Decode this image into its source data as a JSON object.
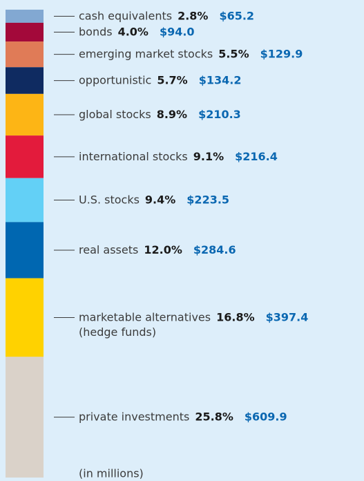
{
  "chart_data": {
    "type": "stacked-column",
    "categories": [
      "cash equivalents",
      "bonds",
      "emerging market stocks",
      "opportunistic",
      "global stocks",
      "international stocks",
      "U.S. stocks",
      "real assets",
      "marketable alternatives",
      "private investments"
    ],
    "category_notes": [
      null,
      null,
      null,
      null,
      null,
      null,
      null,
      null,
      "(hedge funds)",
      null
    ],
    "colors": [
      "#82a8d2",
      "#a3093a",
      "#e07b57",
      "#0f2b61",
      "#fdb515",
      "#e31b3c",
      "#63d0f6",
      "#0067b1",
      "#ffd200",
      "#dad2c9"
    ],
    "series": [
      {
        "name": "share",
        "values": [
          2.8,
          4.0,
          5.5,
          5.7,
          8.9,
          9.1,
          9.4,
          12.0,
          16.8,
          25.8
        ],
        "value_labels": [
          "2.8%",
          "4.0%",
          "5.5%",
          "5.7%",
          "8.9%",
          "9.1%",
          "9.4%",
          "12.0%",
          "16.8%",
          "25.8%"
        ]
      },
      {
        "name": "amount",
        "values": [
          65.2,
          94.0,
          129.9,
          134.2,
          210.3,
          216.4,
          223.5,
          284.6,
          397.4,
          609.9
        ],
        "value_labels": [
          "$65.2",
          "$94.0",
          "$129.9",
          "$134.2",
          "$210.3",
          "$216.4",
          "$223.5",
          "$284.6",
          "$397.4",
          "$609.9"
        ]
      }
    ],
    "note": "(in millions)"
  }
}
